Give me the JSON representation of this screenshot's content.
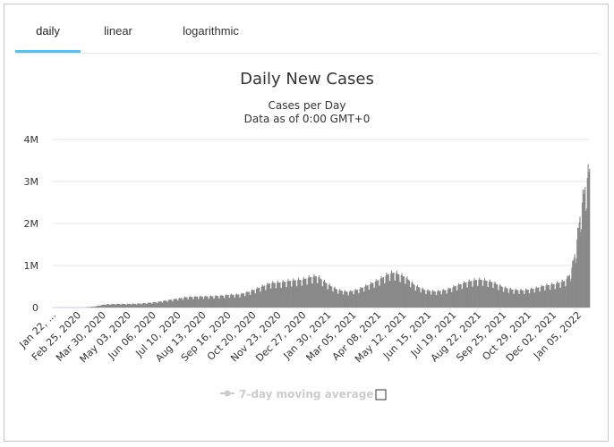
{
  "tabs": [
    {
      "label": "daily",
      "active": true
    },
    {
      "label": "linear",
      "active": false
    },
    {
      "label": "logarithmic",
      "active": false
    }
  ],
  "colors": {
    "accent": "#4fc3f7",
    "bars": "#898989",
    "legend_inactive": "#cccccc",
    "grid": "#e6e6e6",
    "text": "#333333"
  },
  "chart_data": {
    "type": "bar",
    "title": "Daily New Cases",
    "subtitle_lines": [
      "Cases per Day",
      "Data as of 0:00 GMT+0"
    ],
    "xlabel": "",
    "ylabel": "",
    "ylim": [
      0,
      4000000
    ],
    "y_ticks": [
      {
        "value": 0,
        "label": "0"
      },
      {
        "value": 1000000,
        "label": "1M"
      },
      {
        "value": 2000000,
        "label": "2M"
      },
      {
        "value": 3000000,
        "label": "3M"
      },
      {
        "value": 4000000,
        "label": "4M"
      }
    ],
    "x_range": [
      "2020-01-22",
      "2022-01-17"
    ],
    "x_tick_labels": [
      "Jan 22, ...",
      "Feb 25, 2020",
      "Mar 30, 2020",
      "May 03, 2020",
      "Jun 06, 2020",
      "Jul 10, 2020",
      "Aug 13, 2020",
      "Sep 16, 2020",
      "Oct 20, 2020",
      "Nov 23, 2020",
      "Dec 27, 2020",
      "Jan 30, 2021",
      "Mar 05, 2021",
      "Apr 08, 2021",
      "May 12, 2021",
      "Jun 15, 2021",
      "Jul 19, 2021",
      "Aug 22, 2021",
      "Sep 25, 2021",
      "Oct 29, 2021",
      "Dec 02, 2021",
      "Jan 05, 2022"
    ],
    "grid": true,
    "series": [
      {
        "name": "",
        "weekly_anchors": [
          [
            "2020-01-22",
            500
          ],
          [
            "2020-02-05",
            3000
          ],
          [
            "2020-02-19",
            1500
          ],
          [
            "2020-03-04",
            2500
          ],
          [
            "2020-03-18",
            25000
          ],
          [
            "2020-04-01",
            75000
          ],
          [
            "2020-04-15",
            85000
          ],
          [
            "2020-04-29",
            85000
          ],
          [
            "2020-05-13",
            90000
          ],
          [
            "2020-05-27",
            105000
          ],
          [
            "2020-06-10",
            130000
          ],
          [
            "2020-06-24",
            170000
          ],
          [
            "2020-07-08",
            210000
          ],
          [
            "2020-07-22",
            250000
          ],
          [
            "2020-08-05",
            260000
          ],
          [
            "2020-08-19",
            265000
          ],
          [
            "2020-09-02",
            275000
          ],
          [
            "2020-09-16",
            300000
          ],
          [
            "2020-09-30",
            310000
          ],
          [
            "2020-10-14",
            380000
          ],
          [
            "2020-10-28",
            480000
          ],
          [
            "2020-11-11",
            580000
          ],
          [
            "2020-11-25",
            600000
          ],
          [
            "2020-12-09",
            640000
          ],
          [
            "2020-12-23",
            660000
          ],
          [
            "2021-01-06",
            730000
          ],
          [
            "2021-01-13",
            750000
          ],
          [
            "2021-01-27",
            560000
          ],
          [
            "2021-02-10",
            420000
          ],
          [
            "2021-02-24",
            370000
          ],
          [
            "2021-03-10",
            430000
          ],
          [
            "2021-03-24",
            540000
          ],
          [
            "2021-04-07",
            660000
          ],
          [
            "2021-04-21",
            810000
          ],
          [
            "2021-04-28",
            830000
          ],
          [
            "2021-05-12",
            730000
          ],
          [
            "2021-05-26",
            520000
          ],
          [
            "2021-06-09",
            410000
          ],
          [
            "2021-06-23",
            380000
          ],
          [
            "2021-07-07",
            420000
          ],
          [
            "2021-07-21",
            520000
          ],
          [
            "2021-08-04",
            610000
          ],
          [
            "2021-08-18",
            660000
          ],
          [
            "2021-08-25",
            660000
          ],
          [
            "2021-09-08",
            600000
          ],
          [
            "2021-09-22",
            480000
          ],
          [
            "2021-10-06",
            420000
          ],
          [
            "2021-10-20",
            410000
          ],
          [
            "2021-11-03",
            450000
          ],
          [
            "2021-11-17",
            520000
          ],
          [
            "2021-12-01",
            560000
          ],
          [
            "2021-12-15",
            640000
          ],
          [
            "2021-12-22",
            800000
          ],
          [
            "2021-12-29",
            1350000
          ],
          [
            "2022-01-05",
            2300000
          ],
          [
            "2022-01-10",
            2800000
          ],
          [
            "2022-01-17",
            3300000
          ]
        ]
      }
    ],
    "legend": {
      "label": "7-day moving average",
      "enabled": false,
      "placement": "bottom-center"
    }
  }
}
